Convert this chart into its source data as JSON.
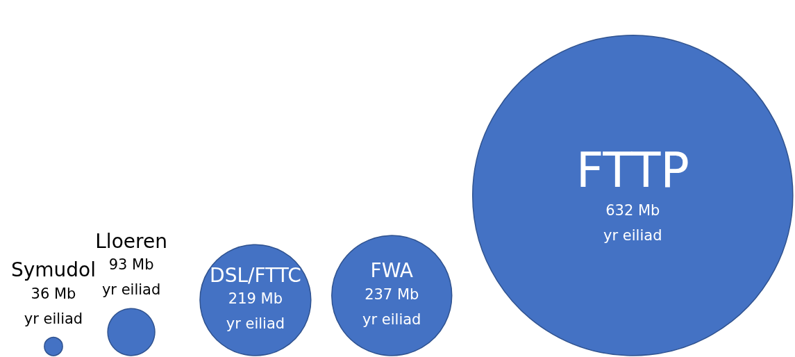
{
  "chart_data": {
    "type": "other",
    "categories": [
      "Symudol",
      "Lloeren",
      "DSL/FTTC",
      "FWA",
      "FTTP"
    ],
    "values": [
      36,
      93,
      219,
      237,
      632
    ],
    "value_labels": [
      "36 Mb\nyr eiliad",
      "93 Mb\nyr eiliad",
      "219 Mb\nyr eiliad",
      "237 Mb\nyr eiliad",
      "632 Mb\nyr eiliad"
    ],
    "color": "#4472c4"
  }
}
